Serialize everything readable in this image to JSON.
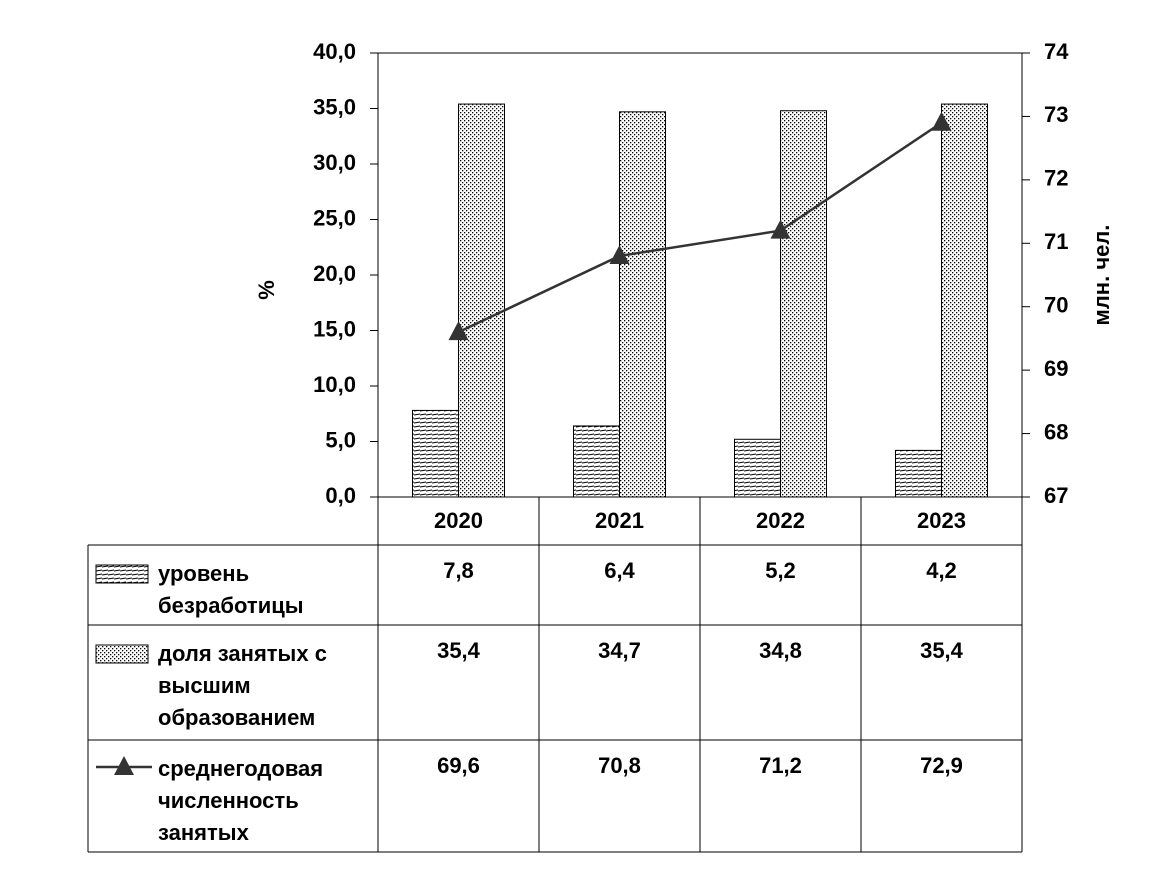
{
  "chart_data": {
    "type": "bar",
    "ylabel": "%",
    "y2label": "млн. чел.",
    "categories": [
      "2020",
      "2021",
      "2022",
      "2023"
    ],
    "series": [
      {
        "name": "уровень безработицы",
        "type": "bar",
        "color": "#000000",
        "values": [
          7.8,
          6.4,
          5.2,
          4.2
        ],
        "value_labels": [
          "7,8",
          "6,4",
          "5,2",
          "4,2"
        ]
      },
      {
        "name": "доля занятых с высшим образованием",
        "type": "bar",
        "color": "#000000",
        "values": [
          35.4,
          34.7,
          34.8,
          35.4
        ],
        "value_labels": [
          "35,4",
          "34,7",
          "34,8",
          "35,4"
        ]
      },
      {
        "name": "среднегодовая численность занятых",
        "type": "line",
        "axis": "y2",
        "color": "#333333",
        "values": [
          69.6,
          70.8,
          71.2,
          72.9
        ],
        "value_labels": [
          "69,6",
          "70,8",
          "71,2",
          "72,9"
        ]
      }
    ],
    "ylim": [
      0,
      40
    ],
    "yticks": [
      {
        "value": 0,
        "label": "0,0"
      },
      {
        "value": 5,
        "label": "5,0"
      },
      {
        "value": 10,
        "label": "10,0"
      },
      {
        "value": 15,
        "label": "15,0"
      },
      {
        "value": 20,
        "label": "20,0"
      },
      {
        "value": 25,
        "label": "25,0"
      },
      {
        "value": 30,
        "label": "30,0"
      },
      {
        "value": 35,
        "label": "35,0"
      },
      {
        "value": 40,
        "label": "40,0"
      }
    ],
    "y2lim": [
      67,
      74
    ],
    "y2ticks": [
      67,
      68,
      69,
      70,
      71,
      72,
      73,
      74
    ],
    "grid": false
  }
}
